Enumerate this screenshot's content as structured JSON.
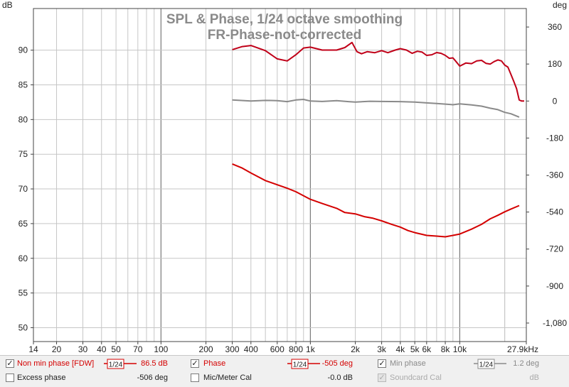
{
  "chart_data": {
    "type": "line",
    "title": "SPL & Phase, 1/24 octave smoothing",
    "subtitle": "FR-Phase-not-corrected",
    "y_left_unit": "dB",
    "y_right_unit": "deg",
    "x_scale": "log",
    "xlim": [
      14,
      27900
    ],
    "ylim_left": [
      48,
      96
    ],
    "ylim_right": [
      -1170,
      450
    ],
    "x_ticks": [
      {
        "v": 14,
        "label": "14"
      },
      {
        "v": 20,
        "label": "20"
      },
      {
        "v": 30,
        "label": "30"
      },
      {
        "v": 40,
        "label": "40"
      },
      {
        "v": 50,
        "label": "50"
      },
      {
        "v": 70,
        "label": "70"
      },
      {
        "v": 100,
        "label": "100"
      },
      {
        "v": 200,
        "label": "200"
      },
      {
        "v": 300,
        "label": "300"
      },
      {
        "v": 400,
        "label": "400"
      },
      {
        "v": 600,
        "label": "600"
      },
      {
        "v": 800,
        "label": "800"
      },
      {
        "v": 1000,
        "label": "1k"
      },
      {
        "v": 2000,
        "label": "2k"
      },
      {
        "v": 3000,
        "label": "3k"
      },
      {
        "v": 4000,
        "label": "4k"
      },
      {
        "v": 5000,
        "label": "5k"
      },
      {
        "v": 6000,
        "label": "6k"
      },
      {
        "v": 8000,
        "label": "8k"
      },
      {
        "v": 10000,
        "label": "10k"
      },
      {
        "v": 27900,
        "label": "27.9kHz"
      }
    ],
    "y_left_ticks": [
      50,
      55,
      60,
      65,
      70,
      75,
      80,
      85,
      90
    ],
    "y_right_ticks": [
      {
        "v": 360,
        "label": "360"
      },
      {
        "v": 180,
        "label": "180"
      },
      {
        "v": 0,
        "label": "0"
      },
      {
        "v": -180,
        "label": "-180"
      },
      {
        "v": -360,
        "label": "-360"
      },
      {
        "v": -540,
        "label": "-540"
      },
      {
        "v": -720,
        "label": "-720"
      },
      {
        "v": -900,
        "label": "-900"
      },
      {
        "v": -1080,
        "label": "-1,080"
      }
    ],
    "grid": true,
    "series": [
      {
        "name": "Non min phase [FDW]",
        "axis": "left",
        "color": "#d40000",
        "x": [
          300,
          350,
          400,
          500,
          600,
          700,
          800,
          1000,
          1200,
          1500,
          1700,
          2000,
          2300,
          2600,
          3000,
          3500,
          4000,
          4500,
          5000,
          5500,
          6000,
          7000,
          8000,
          9000,
          10000,
          12000,
          14000,
          16000,
          18000,
          20000,
          22000,
          25000
        ],
        "y": [
          73.6,
          73.0,
          72.3,
          71.2,
          70.6,
          70.1,
          69.6,
          68.5,
          67.9,
          67.2,
          66.6,
          66.4,
          66.0,
          65.8,
          65.4,
          64.9,
          64.5,
          64.0,
          63.7,
          63.5,
          63.3,
          63.2,
          63.1,
          63.3,
          63.5,
          64.2,
          64.9,
          65.7,
          66.2,
          66.7,
          67.1,
          67.6
        ]
      },
      {
        "name": "Phase",
        "axis": "right",
        "color": "#c00018",
        "x": [
          300,
          350,
          400,
          500,
          600,
          700,
          800,
          900,
          1000,
          1200,
          1500,
          1700,
          1900,
          2050,
          2200,
          2400,
          2700,
          3000,
          3300,
          3700,
          4000,
          4400,
          4800,
          5200,
          5600,
          6000,
          6500,
          7000,
          7500,
          8000,
          8500,
          9000,
          9500,
          10000,
          11000,
          12000,
          13000,
          14000,
          15000,
          16000,
          17000,
          18000,
          19000,
          20000,
          21000,
          22000,
          23000,
          24000,
          25000,
          26000,
          27000
        ],
        "y": [
          250,
          265,
          270,
          245,
          205,
          195,
          225,
          258,
          262,
          248,
          248,
          260,
          285,
          240,
          230,
          240,
          235,
          245,
          235,
          248,
          255,
          248,
          232,
          242,
          238,
          222,
          225,
          236,
          232,
          222,
          208,
          210,
          190,
          170,
          185,
          182,
          195,
          198,
          183,
          180,
          192,
          200,
          195,
          175,
          165,
          130,
          95,
          60,
          5,
          0,
          0
        ]
      },
      {
        "name": "Min phase",
        "axis": "right",
        "color": "#8a8a8a",
        "x": [
          300,
          400,
          500,
          600,
          700,
          800,
          900,
          1000,
          1200,
          1500,
          1800,
          2000,
          2500,
          3000,
          4000,
          5000,
          6000,
          7000,
          8000,
          9000,
          10000,
          12000,
          14000,
          16000,
          18000,
          20000,
          22000,
          25000
        ],
        "y": [
          5,
          0,
          3,
          2,
          -3,
          5,
          8,
          0,
          -2,
          2,
          -3,
          -5,
          -1,
          -2,
          -3,
          -5,
          -9,
          -12,
          -15,
          -18,
          -14,
          -19,
          -25,
          -35,
          -42,
          -55,
          -62,
          -78
        ]
      }
    ]
  },
  "legend": {
    "row1": {
      "nonmin_label": "Non min phase [FDW]",
      "nonmin_smooth": "1/24",
      "nonmin_value": "86.5 dB",
      "phase_label": "Phase",
      "phase_smooth": "1/24",
      "phase_value": "-505 deg",
      "minphase_label": "Min phase",
      "minphase_smooth": "1/24",
      "minphase_value": "1.2 deg"
    },
    "row2": {
      "excess_label": "Excess phase",
      "excess_value": "-506 deg",
      "mic_label": "Mic/Meter Cal",
      "mic_value": "-0.0 dB",
      "soundcard_label": "Soundcard Cal",
      "soundcard_value": "dB"
    },
    "colors": {
      "nonmin": "#d40000",
      "phase": "#d40000",
      "minphase": "#8a8a8a"
    }
  }
}
